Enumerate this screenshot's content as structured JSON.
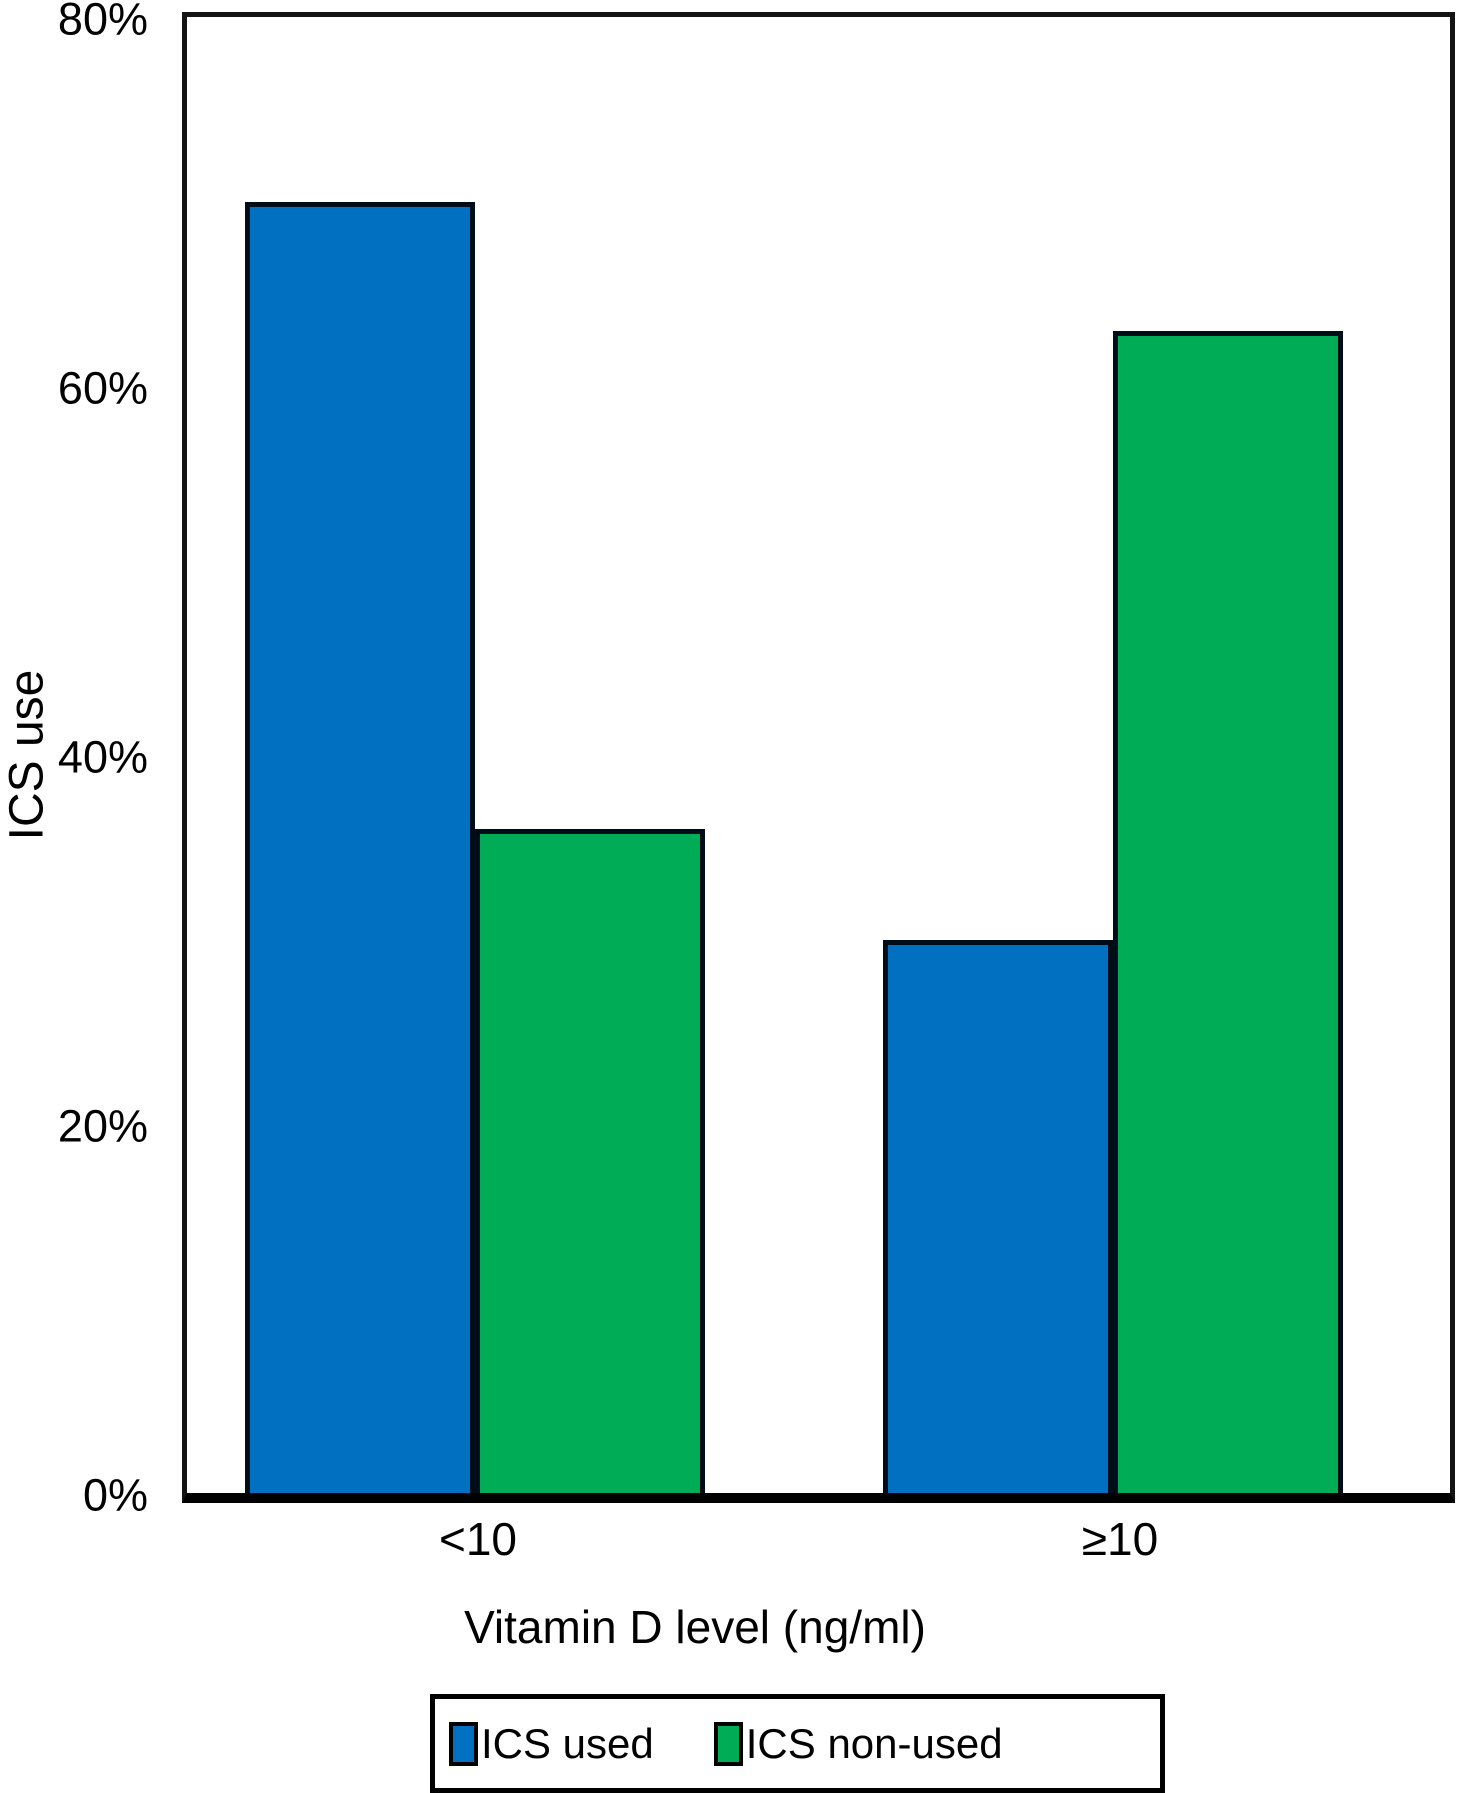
{
  "chart_data": {
    "type": "bar",
    "categories": [
      "<10",
      "≥10"
    ],
    "series": [
      {
        "name": "ICS used",
        "color": "#0170C0",
        "values": [
          70,
          30
        ]
      },
      {
        "name": "ICS non-used",
        "color": "#00AC55",
        "values": [
          36,
          63
        ]
      }
    ],
    "title": "",
    "xlabel": "Vitamin D level (ng/ml)",
    "ylabel": "ICS use",
    "ylim": [
      0,
      80
    ],
    "yticks": [
      {
        "value": 0,
        "label": "0%"
      },
      {
        "value": 20,
        "label": "20%"
      },
      {
        "value": 40,
        "label": "40%"
      },
      {
        "value": 60,
        "label": "60%"
      },
      {
        "value": 80,
        "label": "80%"
      }
    ],
    "grid": false,
    "legend_position": "bottom",
    "axis_color": "#000000",
    "background": "#ffffff"
  }
}
